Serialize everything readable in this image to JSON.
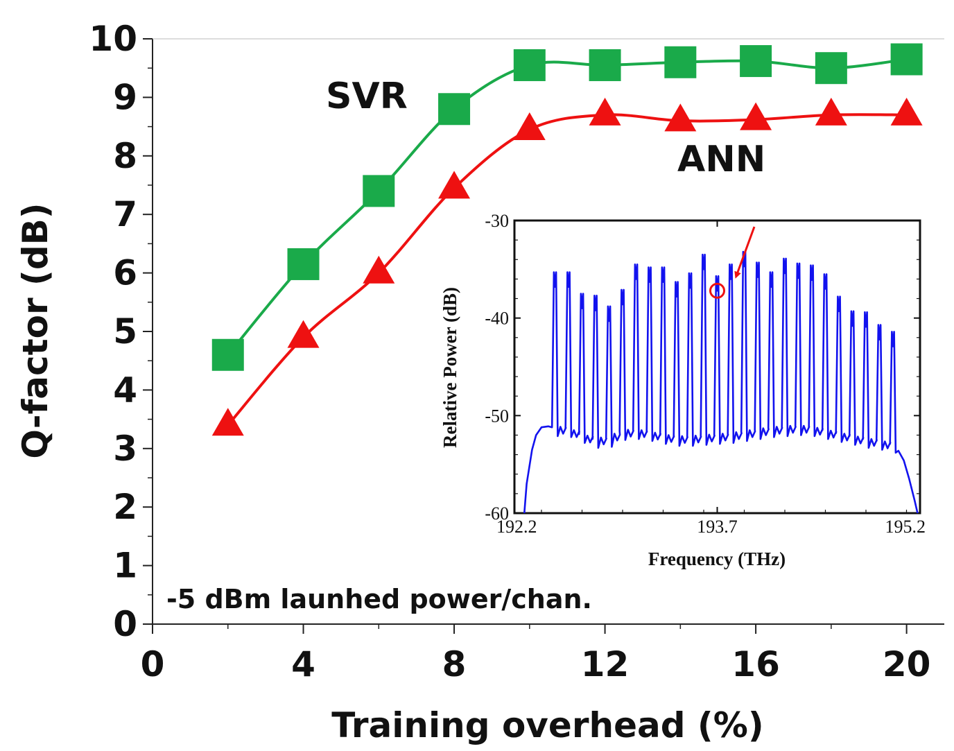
{
  "chart_data": [
    {
      "type": "line",
      "title": "",
      "xlabel": "Training overhead (%)",
      "ylabel": "Q-factor (dB)",
      "xlim": [
        0,
        21
      ],
      "ylim": [
        0,
        10
      ],
      "x_ticks": [
        "0",
        "4",
        "8",
        "12",
        "16",
        "20"
      ],
      "y_ticks": [
        "0",
        "1",
        "2",
        "3",
        "4",
        "5",
        "6",
        "7",
        "8",
        "9",
        "10"
      ],
      "grid": false,
      "annotation": "-5 dBm launhed power/chan.",
      "series": [
        {
          "name": "SVR",
          "marker": "square",
          "color": "#1aaa4a",
          "x": [
            2,
            4,
            6,
            8,
            10,
            12,
            14,
            16,
            18,
            20
          ],
          "values": [
            4.6,
            6.15,
            7.4,
            8.8,
            9.55,
            9.55,
            9.6,
            9.62,
            9.5,
            9.65
          ]
        },
        {
          "name": "ANN",
          "marker": "triangle",
          "color": "#ee1111",
          "x": [
            2,
            4,
            6,
            8,
            10,
            12,
            14,
            16,
            18,
            20
          ],
          "values": [
            3.4,
            4.9,
            6.0,
            7.45,
            8.45,
            8.7,
            8.6,
            8.62,
            8.7,
            8.7
          ]
        }
      ]
    },
    {
      "type": "line",
      "title": "",
      "xlabel": "Frequency (THz)",
      "ylabel": "Relative Power (dB)",
      "xlim": [
        192.2,
        195.2
      ],
      "ylim": [
        -60,
        -30
      ],
      "x_ticks": [
        "192.2",
        "193.7",
        "195.2"
      ],
      "y_ticks": [
        "-30",
        "-40",
        "-50",
        "-60"
      ],
      "grid": false,
      "series": [
        {
          "name": "spectrum",
          "color": "#1212ee",
          "channel_freqs": [
            192.5,
            192.6,
            192.7,
            192.8,
            192.9,
            193.0,
            193.1,
            193.2,
            193.3,
            193.4,
            193.5,
            193.6,
            193.7,
            193.8,
            193.9,
            194.0,
            194.1,
            194.2,
            194.3,
            194.4,
            194.5,
            194.6,
            194.7,
            194.8,
            194.9,
            195.0
          ],
          "channel_peaks": [
            -36.8,
            -36.8,
            -39.0,
            -39.2,
            -40.3,
            -38.6,
            -36.0,
            -36.3,
            -36.3,
            -37.8,
            -36.9,
            -35.0,
            -37.2,
            -36.0,
            -34.7,
            -35.8,
            -36.8,
            -35.4,
            -35.9,
            -36.1,
            -37.0,
            -39.3,
            -40.8,
            -40.9,
            -42.2,
            -42.9
          ],
          "floor_levels": [
            -51.5,
            -51.6,
            -52.2,
            -52.7,
            -52.6,
            -51.9,
            -51.8,
            -52.0,
            -52.3,
            -52.5,
            -52.5,
            -52.4,
            -52.3,
            -52.2,
            -52.0,
            -51.8,
            -51.6,
            -51.5,
            -51.4,
            -51.5,
            -51.8,
            -52.1,
            -52.4,
            -52.7,
            -52.9,
            -53.2
          ]
        }
      ],
      "highlight_channel": 193.7
    }
  ]
}
